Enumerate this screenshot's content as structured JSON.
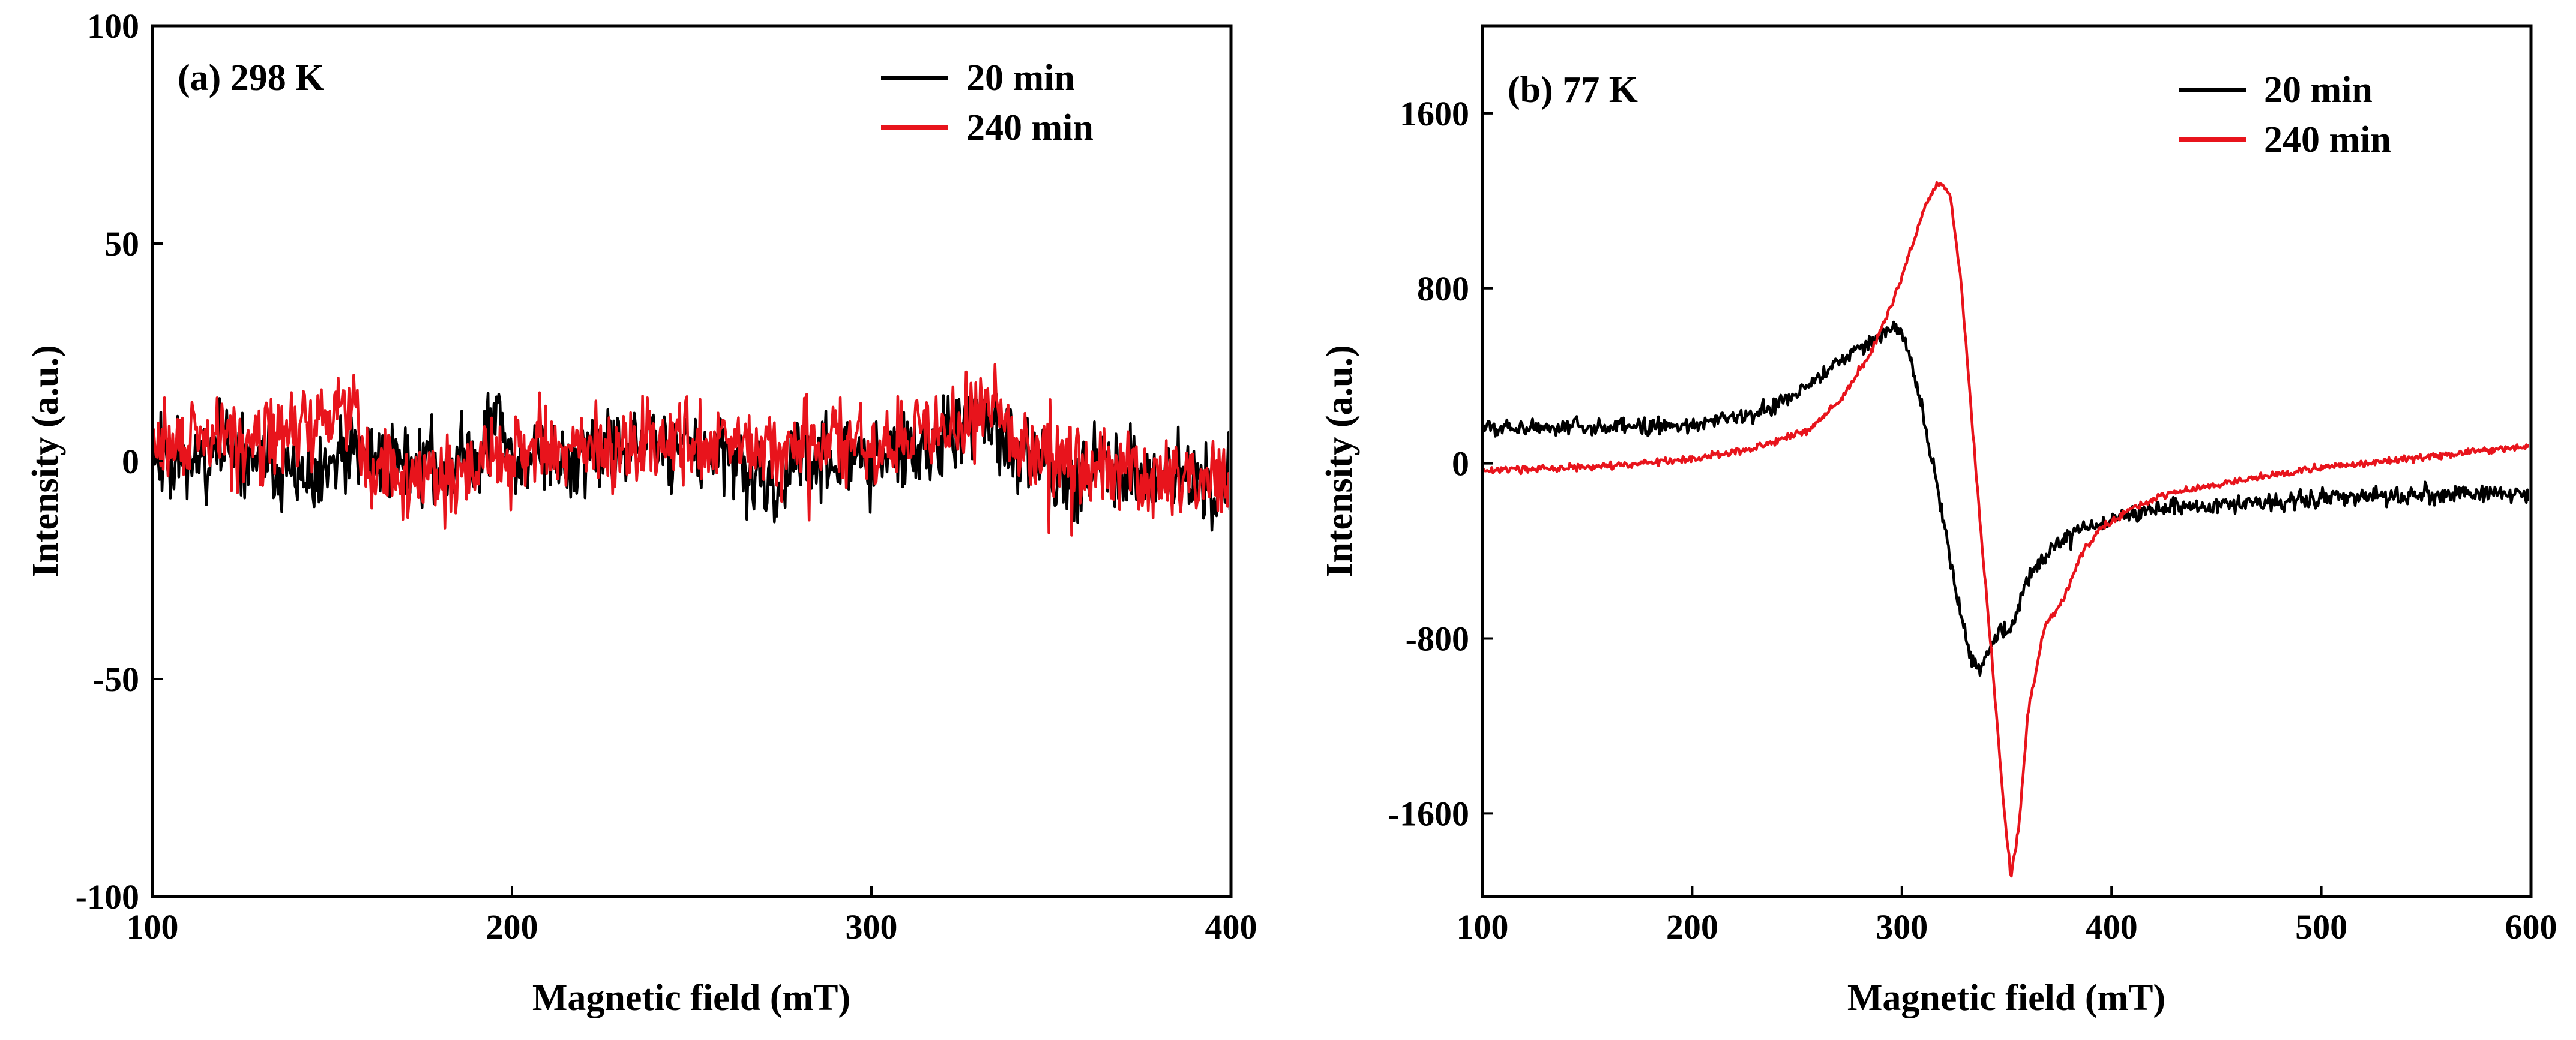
{
  "chart_data": [
    {
      "type": "line",
      "panel_label": "(a) 298 K",
      "xlabel": "Magnetic field (mT)",
      "ylabel": "Intensity (a.u.)",
      "xlim": [
        100,
        400
      ],
      "ylim": [
        -100,
        100
      ],
      "xticks": [
        100,
        200,
        300,
        400
      ],
      "yticks": [
        -100,
        -50,
        0,
        50,
        100
      ],
      "xtick_labels": [
        "100",
        "200",
        "300",
        "400"
      ],
      "ytick_labels": [
        "-100",
        "-50",
        "0",
        "50",
        "100"
      ],
      "legend_position": "top-right",
      "series": [
        {
          "name": "20 min",
          "color": "#000000",
          "noise_amp": 7,
          "seed": 11,
          "x": [
            100,
            110,
            120,
            130,
            140,
            146,
            150,
            160,
            170,
            180,
            190,
            196,
            200,
            210,
            220,
            230,
            240,
            250,
            260,
            270,
            272,
            280,
            290,
            300,
            310,
            320,
            325,
            330,
            335,
            340,
            350,
            360,
            370,
            380,
            390,
            400
          ],
          "y": [
            3,
            1,
            2,
            0,
            -3,
            -8,
            0,
            1,
            0,
            -1,
            2,
            10,
            2,
            0,
            1,
            2,
            5,
            3,
            0,
            -5,
            -8,
            0,
            1,
            0,
            2,
            4,
            8,
            10,
            6,
            1,
            -2,
            -2,
            -3,
            -3,
            -4,
            -6
          ]
        },
        {
          "name": "240 min",
          "color": "#e8141c",
          "noise_amp": 7,
          "seed": 29,
          "x": [
            100,
            110,
            120,
            130,
            140,
            148,
            152,
            156,
            160,
            170,
            180,
            190,
            200,
            210,
            220,
            230,
            240,
            250,
            260,
            270,
            280,
            290,
            300,
            310,
            320,
            325,
            330,
            335,
            340,
            350,
            360,
            370,
            380,
            390,
            400
          ],
          "y": [
            4,
            4,
            5,
            6,
            7,
            9,
            15,
            12,
            -2,
            -3,
            -3,
            -1,
            0,
            2,
            3,
            3,
            5,
            5,
            3,
            2,
            3,
            4,
            3,
            5,
            6,
            9,
            12,
            10,
            5,
            2,
            0,
            -3,
            -4,
            -4,
            -6
          ]
        }
      ]
    },
    {
      "type": "line",
      "panel_label": "(b) 77 K",
      "xlabel": "Magnetic field (mT)",
      "ylabel": "Intensity (a.u.)",
      "xlim": [
        100,
        600
      ],
      "ylim": [
        -1980,
        2000
      ],
      "xticks": [
        100,
        200,
        300,
        400,
        500,
        600
      ],
      "yticks": [
        -1600,
        -800,
        0,
        800,
        1600
      ],
      "xtick_labels": [
        "100",
        "200",
        "300",
        "400",
        "500",
        "600"
      ],
      "ytick_labels": [
        "-1600",
        "-800",
        "0",
        "800",
        "1600"
      ],
      "legend_position": "top-right",
      "series": [
        {
          "name": "20 min",
          "color": "#000000",
          "noise_amp": 30,
          "seed": 5,
          "x": [
            100,
            150,
            200,
            230,
            250,
            270,
            285,
            295,
            300,
            305,
            315,
            325,
            333,
            337,
            341,
            346,
            352,
            360,
            372,
            385,
            400,
            430,
            460,
            500,
            540,
            580,
            600
          ],
          "y": [
            170,
            160,
            180,
            220,
            320,
            460,
            560,
            620,
            590,
            450,
            0,
            -550,
            -900,
            -940,
            -870,
            -760,
            -770,
            -530,
            -380,
            -300,
            -250,
            -200,
            -180,
            -160,
            -150,
            -130,
            -150
          ]
        },
        {
          "name": "240 min",
          "color": "#e8141c",
          "noise_amp": 12,
          "seed": 17,
          "x": [
            100,
            150,
            200,
            230,
            255,
            270,
            285,
            295,
            305,
            312,
            318,
            323,
            328,
            333,
            338,
            343,
            348,
            352,
            356,
            360,
            364,
            368,
            372,
            378,
            385,
            395,
            410,
            430,
            460,
            500,
            550,
            600
          ],
          "y": [
            -30,
            -20,
            20,
            70,
            150,
            280,
            500,
            720,
            1000,
            1200,
            1290,
            1230,
            850,
            250,
            -350,
            -900,
            -1500,
            -1900,
            -1650,
            -1150,
            -950,
            -740,
            -700,
            -600,
            -420,
            -300,
            -200,
            -130,
            -80,
            -20,
            30,
            80
          ]
        }
      ]
    }
  ]
}
